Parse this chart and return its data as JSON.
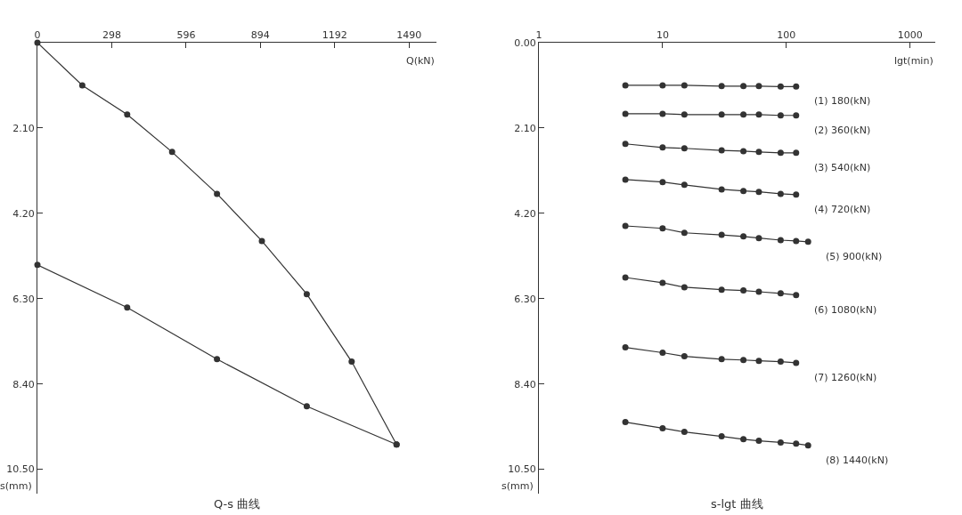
{
  "chart_data": [
    {
      "type": "line",
      "title": "Q-s 曲线",
      "xlabel": "Q(kN)",
      "ylabel": "s(mm)",
      "marker": "circle",
      "line_style": "solid",
      "grid": false,
      "xlim": [
        0,
        1600
      ],
      "xticks": [
        0,
        298,
        596,
        894,
        1192,
        1490
      ],
      "ylim": [
        11.1,
        0
      ],
      "yticks": [
        {
          "value": 2.1,
          "label": "2.10"
        },
        {
          "value": 4.2,
          "label": "4.20"
        },
        {
          "value": 6.3,
          "label": "6.30"
        },
        {
          "value": 8.4,
          "label": "8.40"
        },
        {
          "value": 10.5,
          "label": "10.50"
        }
      ],
      "series": [
        {
          "color": "#333333",
          "x": [
            0,
            180,
            360,
            540,
            720,
            900,
            1080,
            1260,
            1440
          ],
          "values": [
            0,
            1.05,
            1.77,
            2.69,
            3.72,
            4.88,
            6.19,
            7.85,
            9.89
          ]
        },
        {
          "color": "#333333",
          "x": [
            1440,
            1080,
            720,
            360,
            0
          ],
          "values": [
            9.89,
            8.95,
            7.79,
            6.52,
            5.47
          ]
        }
      ]
    },
    {
      "type": "line",
      "title": "s-lgt 曲线",
      "xlabel": "lgt(min)",
      "ylabel": "s(mm)",
      "marker": "circle",
      "line_style": "solid",
      "grid": false,
      "log": "x",
      "xlim": [
        1,
        1600
      ],
      "xticks": [
        1,
        10,
        100,
        1000
      ],
      "ylim": [
        11.1,
        0
      ],
      "yticks": [
        {
          "value": 0,
          "label": "0.00"
        },
        {
          "value": 2.1,
          "label": "2.10"
        },
        {
          "value": 4.2,
          "label": "4.20"
        },
        {
          "value": 6.3,
          "label": "6.30"
        },
        {
          "value": 8.4,
          "label": "8.40"
        },
        {
          "value": 10.5,
          "label": "10.50"
        }
      ],
      "series": [
        {
          "name": "(1) 180(kN)",
          "color": "#333333",
          "x": [
            5,
            10,
            15,
            30,
            45,
            60,
            90,
            120
          ],
          "values": [
            1.05,
            1.05,
            1.05,
            1.07,
            1.07,
            1.07,
            1.08,
            1.08
          ]
        },
        {
          "name": "(2) 360(kN)",
          "color": "#333333",
          "x": [
            5,
            10,
            15,
            30,
            45,
            60,
            90,
            120
          ],
          "values": [
            1.75,
            1.75,
            1.77,
            1.77,
            1.77,
            1.77,
            1.79,
            1.79
          ]
        },
        {
          "name": "(3) 540(kN)",
          "color": "#333333",
          "x": [
            5,
            10,
            15,
            30,
            45,
            60,
            90,
            120
          ],
          "values": [
            2.49,
            2.58,
            2.6,
            2.65,
            2.67,
            2.69,
            2.71,
            2.71
          ]
        },
        {
          "name": "(4) 720(kN)",
          "color": "#333333",
          "x": [
            5,
            10,
            15,
            30,
            45,
            60,
            90,
            120
          ],
          "values": [
            3.37,
            3.43,
            3.5,
            3.61,
            3.65,
            3.67,
            3.72,
            3.74
          ]
        },
        {
          "name": "(5) 900(kN)",
          "color": "#333333",
          "x": [
            5,
            10,
            15,
            30,
            45,
            60,
            90,
            120,
            150
          ],
          "values": [
            4.51,
            4.57,
            4.68,
            4.73,
            4.77,
            4.81,
            4.86,
            4.88,
            4.9
          ]
        },
        {
          "name": "(6) 1080(kN)",
          "color": "#333333",
          "x": [
            5,
            10,
            15,
            30,
            45,
            60,
            90,
            120
          ],
          "values": [
            5.78,
            5.91,
            6.02,
            6.08,
            6.1,
            6.13,
            6.17,
            6.21
          ]
        },
        {
          "name": "(7) 1260(kN)",
          "color": "#333333",
          "x": [
            5,
            10,
            15,
            30,
            45,
            60,
            90,
            120
          ],
          "values": [
            7.5,
            7.63,
            7.72,
            7.79,
            7.81,
            7.83,
            7.85,
            7.88
          ]
        },
        {
          "name": "(8) 1440(kN)",
          "color": "#333333",
          "x": [
            5,
            10,
            15,
            30,
            45,
            60,
            90,
            120,
            150
          ],
          "values": [
            9.34,
            9.49,
            9.58,
            9.69,
            9.76,
            9.8,
            9.84,
            9.87,
            9.91
          ]
        }
      ]
    }
  ]
}
